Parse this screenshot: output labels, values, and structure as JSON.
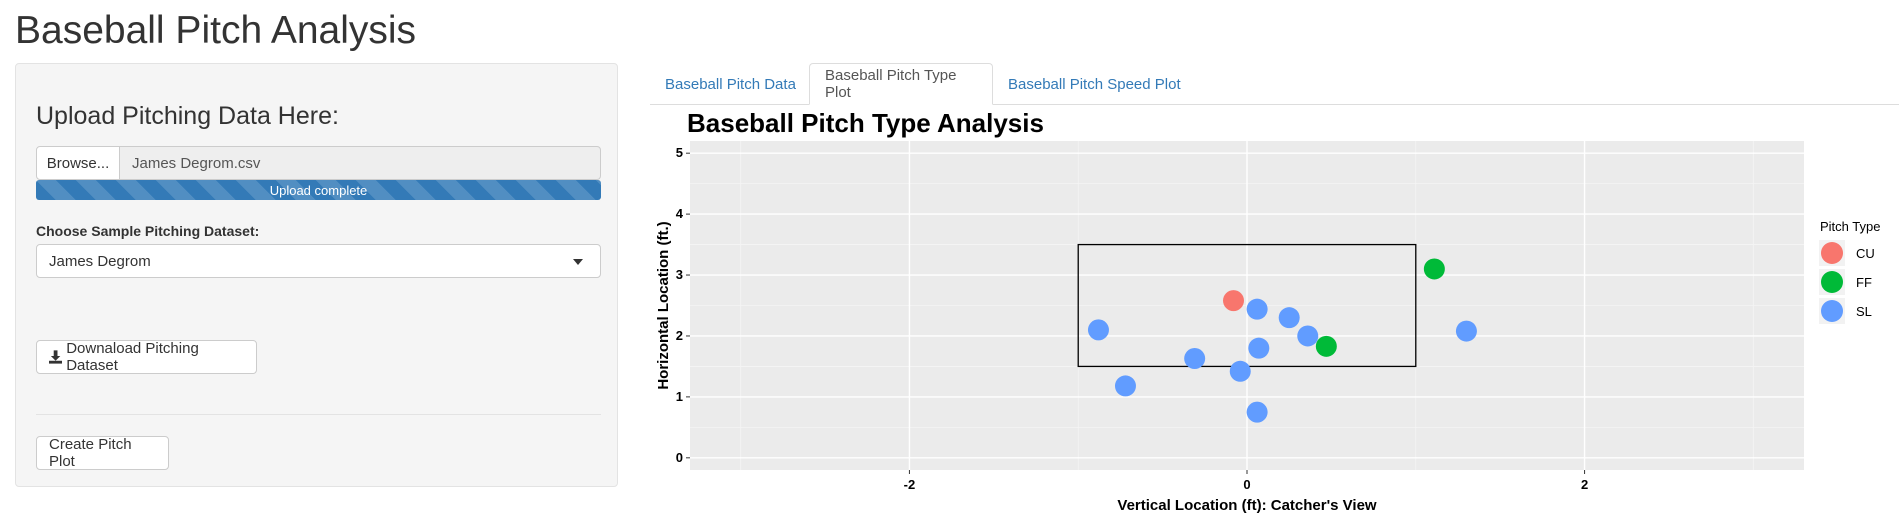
{
  "app": {
    "title": "Baseball Pitch Analysis"
  },
  "sidebar": {
    "upload_heading": "Upload Pitching Data Here:",
    "browse_label": "Browse...",
    "file_name": "James Degrom.csv",
    "upload_status": "Upload complete",
    "upload_progress": 1.0,
    "dataset_label": "Choose Sample Pitching Dataset:",
    "dataset_selected": "James Degrom",
    "download_label": "Downaload Pitching Dataset",
    "create_label": "Create Pitch Plot"
  },
  "tabs": [
    {
      "label": "Baseball Pitch Data",
      "active": false
    },
    {
      "label": "Baseball Pitch Type Plot",
      "active": true
    },
    {
      "label": "Baseball Pitch Speed Plot",
      "active": false
    }
  ],
  "colors": {
    "accent": "#337ab7",
    "CU": "#F8766D",
    "FF": "#00BA38",
    "SL": "#619CFF"
  },
  "chart_data": {
    "type": "scatter",
    "title": "Baseball Pitch Type Analysis",
    "xlabel": "Vertical Location (ft): Catcher's View",
    "ylabel": "Horizontal Location (ft.)",
    "xlim": [
      -3.3,
      3.3
    ],
    "ylim": [
      -0.2,
      5.2
    ],
    "x_ticks": [
      -2,
      0,
      2
    ],
    "y_ticks": [
      0,
      1,
      2,
      3,
      4,
      5
    ],
    "grid": true,
    "legend_title": "Pitch Type",
    "legend_position": "right",
    "strike_zone": {
      "x": [
        -1,
        1
      ],
      "y": [
        1.5,
        3.5
      ]
    },
    "series": [
      {
        "name": "CU",
        "color": "#F8766D",
        "points": [
          {
            "x": -0.08,
            "y": 2.58
          }
        ]
      },
      {
        "name": "FF",
        "color": "#00BA38",
        "points": [
          {
            "x": 1.11,
            "y": 3.1
          },
          {
            "x": 0.47,
            "y": 1.83
          }
        ]
      },
      {
        "name": "SL",
        "color": "#619CFF",
        "points": [
          {
            "x": -0.88,
            "y": 2.1
          },
          {
            "x": 0.06,
            "y": 2.44
          },
          {
            "x": 0.25,
            "y": 2.3
          },
          {
            "x": 0.36,
            "y": 2.0
          },
          {
            "x": 0.07,
            "y": 1.8
          },
          {
            "x": -0.31,
            "y": 1.63
          },
          {
            "x": -0.04,
            "y": 1.42
          },
          {
            "x": -0.72,
            "y": 1.18
          },
          {
            "x": 0.06,
            "y": 0.75
          },
          {
            "x": 1.3,
            "y": 2.08
          }
        ]
      }
    ]
  }
}
